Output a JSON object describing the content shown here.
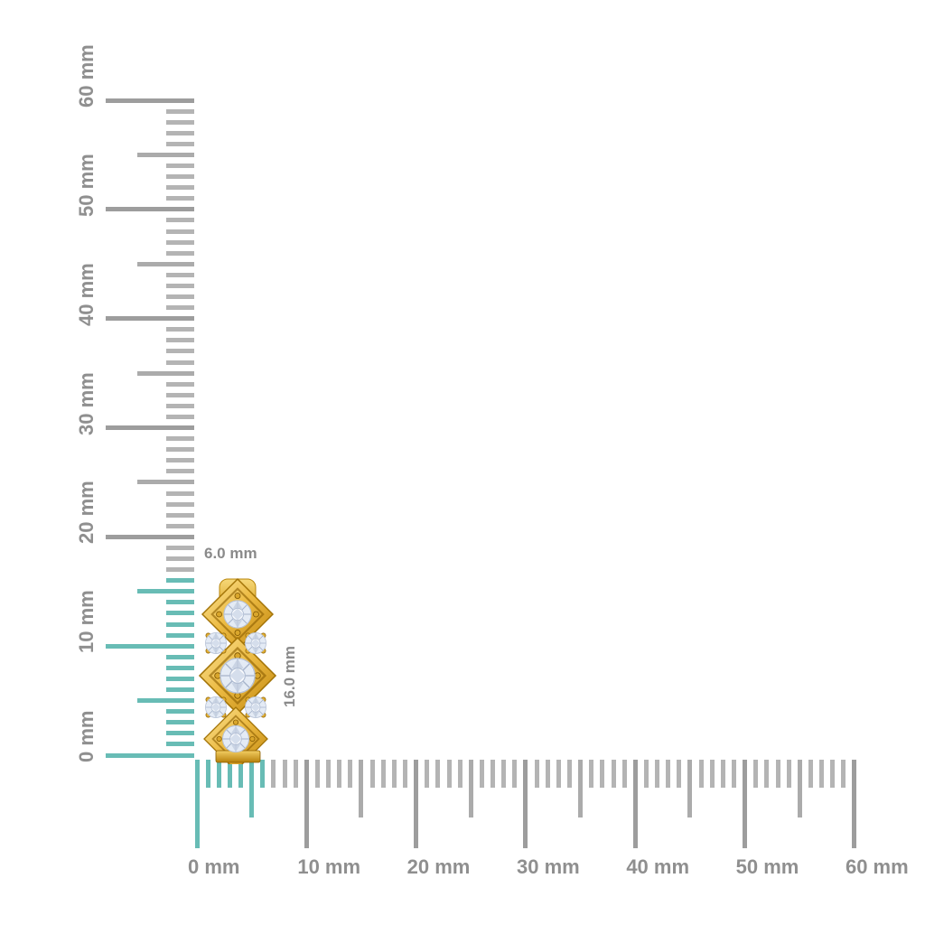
{
  "annotations": {
    "object_width": "6.0 mm",
    "object_height": "16.0 mm"
  },
  "rulers": {
    "unit": "mm",
    "vertical": {
      "range_mm": [
        0,
        60
      ],
      "major_step_mm": 10,
      "medium_step_mm": 5,
      "minor_step_mm": 1,
      "labels": [
        "0 mm",
        "10 mm",
        "20 mm",
        "30 mm",
        "40 mm",
        "50 mm",
        "60 mm"
      ],
      "highlight_to_mm": 16
    },
    "horizontal": {
      "range_mm": [
        0,
        60
      ],
      "major_step_mm": 10,
      "medium_step_mm": 5,
      "minor_step_mm": 1,
      "labels": [
        "0 mm",
        "10 mm",
        "20 mm",
        "30 mm",
        "40 mm",
        "50 mm",
        "60 mm"
      ],
      "highlight_to_mm": 6
    }
  },
  "object": {
    "type": "yellow-gold diamond huggie earring, side view",
    "width_mm": 6.0,
    "height_mm": 16.0,
    "diamond_count": 7
  },
  "colors": {
    "highlight": "#68BCB5",
    "tick_major": "#9D9D9D",
    "tick_medium": "#ABABAB",
    "tick_minor": "#B4B4B4",
    "label": "#8F8F8F",
    "annotation": "#8A8A8A",
    "gold": "#EDBC45",
    "gold_light": "#F9E49B",
    "gold_dark": "#8A5E00",
    "diamond": "#F3F6FB",
    "diamond_facet": "#A6B3CB",
    "background": "#FFFFFF"
  }
}
